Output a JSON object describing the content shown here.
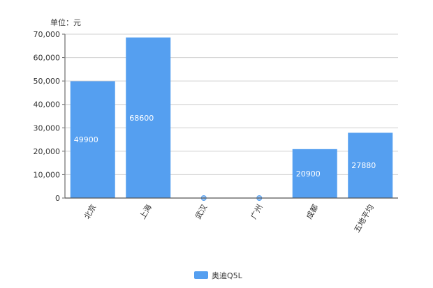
{
  "chart_data": {
    "type": "bar",
    "unit_label": "单位：元",
    "categories": [
      "北京",
      "上海",
      "武汉",
      "广州",
      "成都",
      "五地平均"
    ],
    "series": [
      {
        "name": "奥迪Q5L",
        "values": [
          49900,
          68600,
          0,
          0,
          20900,
          27880
        ],
        "color": "#559ff0"
      }
    ],
    "ylim": [
      0,
      70000
    ],
    "yticks": [
      0,
      10000,
      20000,
      30000,
      40000,
      50000,
      60000,
      70000
    ],
    "ytick_labels": [
      "0",
      "10,000",
      "20,000",
      "30,000",
      "40,000",
      "50,000",
      "60,000",
      "70,000"
    ],
    "grid": true,
    "legend_placement": "bottom"
  }
}
